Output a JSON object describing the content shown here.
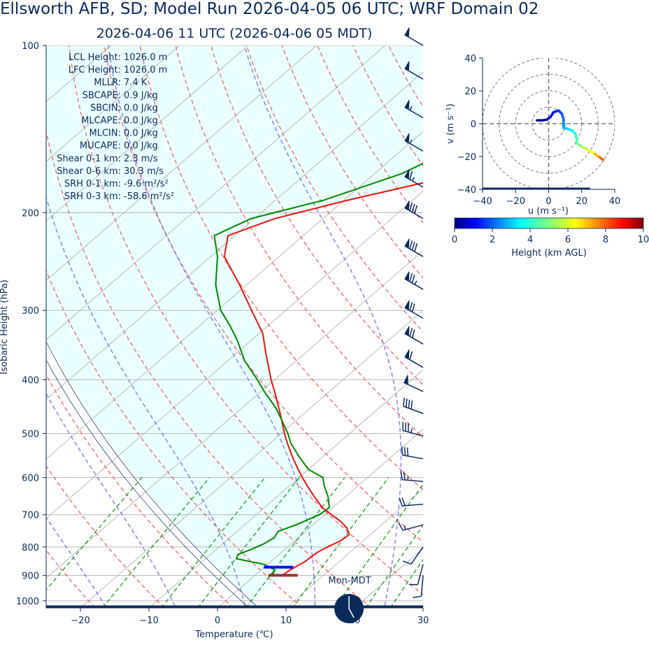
{
  "header": {
    "title": "Ellsworth AFB, SD; Model Run 2026-04-05 06 UTC; WRF Domain 02",
    "subtitle": "2026-04-06 11 UTC  (2026-04-06 05 MDT)"
  },
  "clock": {
    "label": "Mon-MDT"
  },
  "colors": {
    "temperature": "#ee1111",
    "dewpoint": "#008800",
    "dry_adiabat": "#ee5555",
    "moist_adiabat": "#6666ee",
    "mixing_ratio": "#119911",
    "isotherm": "#b0b0b0",
    "cape_fill": "#eaffff",
    "lcl_marker": "#1111ee",
    "lfc_marker": "#993333",
    "axis": "#0a2a5a"
  },
  "stats": [
    "LCL Height: 1026.0 m",
    "LFC Height: 1026.0 m",
    "MLLR: 7.4 K",
    "SBCAPE: 0.9 J/kg",
    "SBCIN: 0.0 J/kg",
    "MLCAPE: 0.0 J/kg",
    "MLCIN: 0.0 J/kg",
    "MUCAPE: 0.0 J/kg",
    "Shear 0-1 km: 2.3 m/s",
    "Shear 0-6 km: 30.3 m/s",
    "SRH 0-1 km: -9.6 m²/s²",
    "SRH 0-3 km: -58.6 m²/s²"
  ],
  "chart_data": [
    {
      "type": "line",
      "subtype": "skew-t",
      "xlabel": "Temperature (℃)",
      "ylabel": "Isobaric Height (hPa)",
      "xlim": [
        -25,
        30
      ],
      "ylim": [
        1030,
        100
      ],
      "y_scale": "log",
      "xticks": [
        -20,
        -10,
        0,
        10,
        20,
        30
      ],
      "xtick_labels": [
        "−20",
        "−10",
        "0",
        "10",
        "20",
        "30"
      ],
      "yticks": [
        100,
        200,
        300,
        400,
        500,
        600,
        700,
        800,
        900,
        1000
      ],
      "ytick_labels": [
        "100",
        "200",
        "300",
        "400",
        "500",
        "600",
        "700",
        "800",
        "900",
        "1000"
      ],
      "series": [
        {
          "key": "temperature",
          "p": [
            900,
            880,
            850,
            820,
            800,
            780,
            760,
            740,
            720,
            700,
            680,
            650,
            620,
            600,
            580,
            550,
            520,
            500,
            460,
            420,
            400,
            360,
            330,
            300,
            270,
            240,
            220,
            205,
            190,
            170,
            150,
            130,
            115,
            100
          ],
          "t": [
            4,
            4.2,
            5,
            5.2,
            5.8,
            6.7,
            6.9,
            5.5,
            3.5,
            1.0,
            -1.5,
            -4.5,
            -7.5,
            -9.5,
            -11.5,
            -14.5,
            -17.5,
            -19.5,
            -23.5,
            -28,
            -30.5,
            -35.5,
            -39.5,
            -45,
            -51,
            -58,
            -61,
            -57,
            -49.5,
            -37,
            -27.5,
            -21,
            -17,
            -14
          ]
        },
        {
          "key": "dewpoint",
          "p": [
            900,
            880,
            860,
            850,
            840,
            825,
            810,
            790,
            770,
            750,
            730,
            700,
            680,
            650,
            620,
            600,
            580,
            550,
            520,
            500,
            470,
            450,
            420,
            400,
            370,
            340,
            320,
            300,
            270,
            240,
            220,
            205,
            190,
            170,
            155,
            140,
            125,
            110,
            100
          ],
          "t": [
            2.5,
            2,
            -0.5,
            -3,
            -5.5,
            -6,
            -5,
            -4,
            -3.5,
            -4,
            -2.5,
            -0.8,
            -0.5,
            -2.5,
            -5,
            -6.5,
            -10,
            -13.5,
            -17,
            -19,
            -22.5,
            -25,
            -29.5,
            -32.5,
            -37.5,
            -42,
            -45.5,
            -49.5,
            -54.5,
            -59,
            -63,
            -60.5,
            -53,
            -46,
            -43,
            -41,
            -36.5,
            -30,
            -27
          ]
        },
        {
          "key": "parcel",
          "p": [
            1026,
            1000,
            960,
            920,
            880,
            840,
            800,
            760,
            720,
            680,
            640,
            600
          ],
          "t": [
            6.5,
            5.0,
            3.0,
            1.0,
            -1.0,
            -3.0,
            -5.2,
            -7.5,
            -10.0,
            -12.6,
            -15.4,
            -18.4
          ]
        }
      ],
      "markers": {
        "lcl_p": 870,
        "lfc_p": 900
      },
      "surface_p": 1026,
      "mixing_ratios_gkg": [
        0.4,
        1,
        2,
        3,
        5,
        8,
        12,
        16,
        20
      ],
      "wind_barbs": [
        {
          "p": 100,
          "speed_kt": 50,
          "dir": 300
        },
        {
          "p": 115,
          "speed_kt": 50,
          "dir": 300
        },
        {
          "p": 135,
          "speed_kt": 55,
          "dir": 300
        },
        {
          "p": 155,
          "speed_kt": 55,
          "dir": 300
        },
        {
          "p": 180,
          "speed_kt": 65,
          "dir": 300
        },
        {
          "p": 205,
          "speed_kt": 80,
          "dir": 300
        },
        {
          "p": 240,
          "speed_kt": 80,
          "dir": 300
        },
        {
          "p": 275,
          "speed_kt": 75,
          "dir": 300
        },
        {
          "p": 310,
          "speed_kt": 70,
          "dir": 300
        },
        {
          "p": 345,
          "speed_kt": 70,
          "dir": 300
        },
        {
          "p": 380,
          "speed_kt": 60,
          "dir": 300
        },
        {
          "p": 420,
          "speed_kt": 50,
          "dir": 295
        },
        {
          "p": 460,
          "speed_kt": 40,
          "dir": 290
        },
        {
          "p": 505,
          "speed_kt": 35,
          "dir": 285
        },
        {
          "p": 555,
          "speed_kt": 30,
          "dir": 280
        },
        {
          "p": 610,
          "speed_kt": 25,
          "dir": 275
        },
        {
          "p": 670,
          "speed_kt": 20,
          "dir": 265
        },
        {
          "p": 730,
          "speed_kt": 15,
          "dir": 255
        },
        {
          "p": 800,
          "speed_kt": 10,
          "dir": 215
        },
        {
          "p": 860,
          "speed_kt": 10,
          "dir": 195
        },
        {
          "p": 900,
          "speed_kt": 10,
          "dir": 185
        }
      ]
    },
    {
      "type": "line",
      "subtype": "hodograph",
      "xlabel": "u (m s⁻¹)",
      "ylabel": "v (m s⁻¹)",
      "xlim": [
        -40,
        40
      ],
      "ylim": [
        -40,
        40
      ],
      "xticks": [
        -40,
        -20,
        0,
        20,
        40
      ],
      "xtick_labels": [
        "−40",
        "−20",
        "0",
        "20",
        "40"
      ],
      "yticks": [
        40,
        20,
        0,
        -20,
        -40
      ],
      "ytick_labels": [
        "40",
        "20",
        "0",
        "−20",
        "−40"
      ],
      "rings": [
        10,
        20,
        30,
        40
      ],
      "points": [
        {
          "u": -7,
          "v": 2,
          "h": 0.1
        },
        {
          "u": -4,
          "v": 2,
          "h": 0.3
        },
        {
          "u": -1,
          "v": 2.5,
          "h": 0.6
        },
        {
          "u": 1,
          "v": 4,
          "h": 0.9
        },
        {
          "u": 3,
          "v": 7,
          "h": 1.2
        },
        {
          "u": 6,
          "v": 8,
          "h": 1.5
        },
        {
          "u": 8,
          "v": 6,
          "h": 1.8
        },
        {
          "u": 9,
          "v": 3,
          "h": 2.1
        },
        {
          "u": 9,
          "v": 0,
          "h": 2.4
        },
        {
          "u": 9,
          "v": -2.5,
          "h": 2.7
        },
        {
          "u": 11,
          "v": -3,
          "h": 3.0
        },
        {
          "u": 14,
          "v": -4,
          "h": 3.4
        },
        {
          "u": 16,
          "v": -6,
          "h": 3.8
        },
        {
          "u": 17,
          "v": -9,
          "h": 4.2
        },
        {
          "u": 17,
          "v": -12,
          "h": 4.6
        },
        {
          "u": 20,
          "v": -14,
          "h": 5.2
        },
        {
          "u": 24,
          "v": -16,
          "h": 6.0
        },
        {
          "u": 28,
          "v": -18.5,
          "h": 6.8
        },
        {
          "u": 31,
          "v": -20.5,
          "h": 7.5
        },
        {
          "u": 33,
          "v": -22,
          "h": 8.2
        }
      ],
      "colorbar": {
        "label": "Height (km AGL)",
        "range": [
          0,
          10
        ],
        "ticks": [
          0,
          2,
          4,
          6,
          8,
          10
        ],
        "tick_labels": [
          "0",
          "2",
          "4",
          "6",
          "8",
          "10"
        ],
        "colormap": "jet"
      }
    }
  ]
}
